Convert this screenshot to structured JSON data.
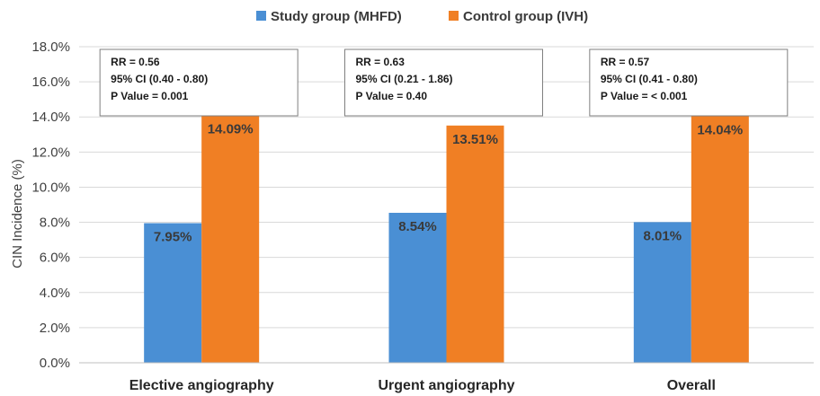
{
  "chart_data": {
    "type": "bar",
    "categories": [
      "Elective angiography",
      "Urgent angiography",
      "Overall"
    ],
    "series": [
      {
        "name": "Study group (MHFD)",
        "values": [
          7.95,
          8.54,
          8.01
        ],
        "labels": [
          "7.95%",
          "8.54%",
          "8.01%"
        ],
        "color": "#4A8FD4"
      },
      {
        "name": "Control group (IVH)",
        "values": [
          14.09,
          13.51,
          14.04
        ],
        "labels": [
          "14.09%",
          "13.51%",
          "14.04%"
        ],
        "color": "#F07F24"
      }
    ],
    "ylabel": "CIN Incidence  (%)",
    "xlabel": "",
    "ylim": [
      0,
      18
    ],
    "yticks": [
      "0.0%",
      "2.0%",
      "4.0%",
      "6.0%",
      "8.0%",
      "10.0%",
      "12.0%",
      "14.0%",
      "16.0%",
      "18.0%"
    ],
    "grid": true,
    "legend_position": "top-center",
    "annotations": [
      {
        "category": "Elective angiography",
        "lines": [
          "RR = 0.56",
          "95% CI (0.40 - 0.80)",
          "P Value = 0.001"
        ]
      },
      {
        "category": "Urgent angiography",
        "lines": [
          "RR = 0.63",
          "95% CI (0.21 - 1.86)",
          "P Value = 0.40"
        ]
      },
      {
        "category": "Overall",
        "lines": [
          "RR = 0.57",
          "95% CI (0.41 - 0.80)",
          "P Value = < 0.001"
        ]
      }
    ]
  }
}
